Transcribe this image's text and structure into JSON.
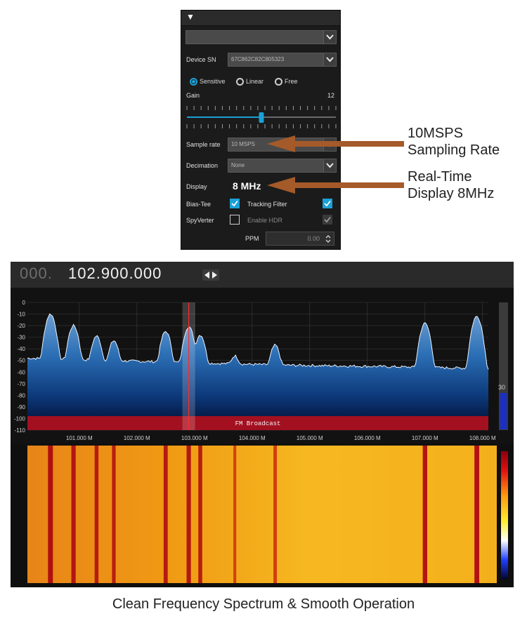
{
  "settings_panel": {
    "source_dropdown": "",
    "device_sn_label": "Device SN",
    "device_sn_value": "67C862C82C805323",
    "modes": [
      {
        "label": "Sensitive",
        "selected": true
      },
      {
        "label": "Linear",
        "selected": false
      },
      {
        "label": "Free",
        "selected": false
      }
    ],
    "gain_label": "Gain",
    "gain_value": "12",
    "gain_level_fraction": 0.5,
    "sample_rate_label": "Sample rate",
    "sample_rate_value": "10 MSPS",
    "decimation_label": "Decimation",
    "decimation_value": "None",
    "display_label": "Display",
    "display_value": "8 MHz",
    "bias_tee_label": "Bias-Tee",
    "bias_tee_checked": true,
    "tracking_filter_label": "Tracking Filter",
    "tracking_filter_checked": true,
    "spyverter_label": "SpyVerter",
    "spyverter_checked": false,
    "enable_hdr_label": "Enable HDR",
    "enable_hdr_checked": true,
    "ppm_label": "PPM",
    "ppm_value": "0.00"
  },
  "annotations": {
    "sampling_line1": "10MSPS",
    "sampling_line2": "Sampling Rate",
    "display_line1": "Real-Time",
    "display_line2": "Display 8MHz"
  },
  "sdr": {
    "frequency_dim": "000.",
    "frequency_main": "102.900.000",
    "tuned_mhz": 102.9,
    "band_label": "FM Broadcast",
    "level_readout": "30",
    "colors": {
      "spectrum_top": "#5b8fc4",
      "spectrum_bottom": "#001040",
      "band": "#a31020",
      "marker": "#ff2a2a",
      "waterfall_base": "#f2a010",
      "waterfall_peak": "#b01010"
    }
  },
  "chart_data": {
    "type": "area",
    "x_range_mhz": [
      100.1,
      108.1
    ],
    "ylim": [
      -110,
      0
    ],
    "y_ticks": [
      "0",
      "-10",
      "-20",
      "-30",
      "-40",
      "-50",
      "-60",
      "-70",
      "-80",
      "-90",
      "-100",
      "-110"
    ],
    "x_ticks": [
      {
        "mhz": 101.0,
        "label": "101.000 M"
      },
      {
        "mhz": 102.0,
        "label": "102.000 M"
      },
      {
        "mhz": 103.0,
        "label": "103.000 M"
      },
      {
        "mhz": 104.0,
        "label": "104.000 M"
      },
      {
        "mhz": 105.0,
        "label": "105.000 M"
      },
      {
        "mhz": 106.0,
        "label": "106.000 M"
      },
      {
        "mhz": 107.0,
        "label": "107.000 M"
      },
      {
        "mhz": 108.0,
        "label": "108.000 M"
      }
    ],
    "noise_floor_db": [
      {
        "mhz": 100.1,
        "db": -48
      },
      {
        "mhz": 101.5,
        "db": -50
      },
      {
        "mhz": 103.0,
        "db": -52
      },
      {
        "mhz": 104.5,
        "db": -54
      },
      {
        "mhz": 106.0,
        "db": -55
      },
      {
        "mhz": 108.1,
        "db": -57
      }
    ],
    "peaks": [
      {
        "mhz": 100.5,
        "db": -10
      },
      {
        "mhz": 100.9,
        "db": -20
      },
      {
        "mhz": 101.3,
        "db": -29
      },
      {
        "mhz": 101.6,
        "db": -33
      },
      {
        "mhz": 102.5,
        "db": -25
      },
      {
        "mhz": 102.9,
        "db": -21
      },
      {
        "mhz": 103.1,
        "db": -28
      },
      {
        "mhz": 103.7,
        "db": -47
      },
      {
        "mhz": 104.4,
        "db": -37
      },
      {
        "mhz": 107.0,
        "db": -18
      },
      {
        "mhz": 107.9,
        "db": -12
      }
    ]
  },
  "caption": "Clean Frequency Spectrum & Smooth Operation"
}
